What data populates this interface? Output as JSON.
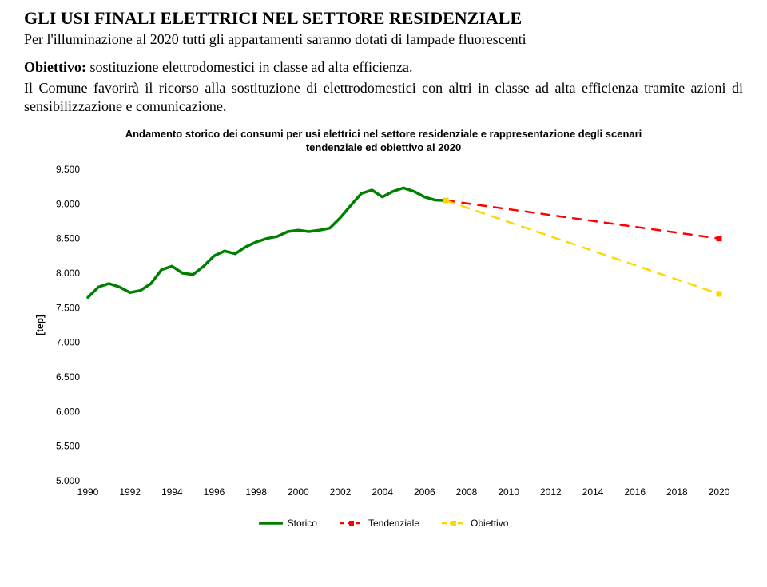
{
  "title": "GLI USI FINALI ELETTRICI NEL SETTORE RESIDENZIALE",
  "para1": "Per l'illuminazione al 2020 tutti gli appartamenti saranno dotati di lampade fluorescenti",
  "objectiveLabel": "Obiettivo:",
  "objectiveText": " sostituzione elettrodomestici  in classe ad alta efficienza.",
  "para2": "Il Comune favorirà il ricorso alla sostituzione di elettrodomestici con altri in classe ad alta efficienza tramite azioni di sensibilizzazione e comunicazione.",
  "chart": {
    "type": "line",
    "title_line1": "Andamento storico dei consumi per usi elettrici nel settore residenziale  e rappresentazione degli scenari",
    "title_line2": "tendenziale ed obiettivo al 2020",
    "title_fontsize": 13,
    "ylabel": "[tep]",
    "ylabel_fontsize": 12,
    "ylim": [
      5000,
      9500
    ],
    "ytick_step": 500,
    "yticks": [
      "9.500",
      "9.000",
      "8.500",
      "8.000",
      "7.500",
      "7.000",
      "6.500",
      "6.000",
      "5.500",
      "5.000"
    ],
    "xlim": [
      1990,
      2020
    ],
    "xtick_step": 2,
    "xticks": [
      "1990",
      "1992",
      "1994",
      "1996",
      "1998",
      "2000",
      "2002",
      "2004",
      "2006",
      "2008",
      "2010",
      "2012",
      "2014",
      "2016",
      "2018",
      "2020"
    ],
    "background_color": "#ffffff",
    "storico": {
      "color": "#008000",
      "width": 3.5,
      "points": [
        [
          1990,
          7650
        ],
        [
          1990.5,
          7800
        ],
        [
          1991,
          7850
        ],
        [
          1991.5,
          7800
        ],
        [
          1992,
          7720
        ],
        [
          1992.5,
          7750
        ],
        [
          1993,
          7850
        ],
        [
          1993.5,
          8050
        ],
        [
          1994,
          8100
        ],
        [
          1994.5,
          8000
        ],
        [
          1995,
          7980
        ],
        [
          1995.5,
          8100
        ],
        [
          1996,
          8250
        ],
        [
          1996.5,
          8320
        ],
        [
          1997,
          8280
        ],
        [
          1997.5,
          8380
        ],
        [
          1998,
          8450
        ],
        [
          1998.5,
          8500
        ],
        [
          1999,
          8530
        ],
        [
          1999.5,
          8600
        ],
        [
          2000,
          8620
        ],
        [
          2000.5,
          8600
        ],
        [
          2001,
          8620
        ],
        [
          2001.5,
          8650
        ],
        [
          2002,
          8800
        ],
        [
          2002.5,
          8980
        ],
        [
          2003,
          9150
        ],
        [
          2003.5,
          9200
        ],
        [
          2004,
          9100
        ],
        [
          2004.5,
          9180
        ],
        [
          2005,
          9230
        ],
        [
          2005.5,
          9180
        ],
        [
          2006,
          9100
        ],
        [
          2006.5,
          9055
        ],
        [
          2007,
          9050
        ]
      ]
    },
    "tendenziale": {
      "color": "#ff0000",
      "width": 2.5,
      "dash": "12,8",
      "marker_size": 7,
      "points": [
        [
          2007,
          9050
        ],
        [
          2020,
          8500
        ]
      ]
    },
    "obiettivo": {
      "color": "#ffd700",
      "width": 2.5,
      "dash": "12,8",
      "marker_size": 7,
      "points": [
        [
          2007,
          9050
        ],
        [
          2020,
          7700
        ]
      ]
    },
    "legend": {
      "items": [
        {
          "label": "Storico",
          "kind": "solid",
          "color": "#008000"
        },
        {
          "label": "Tendenziale",
          "kind": "dash-marker",
          "color": "#ff0000"
        },
        {
          "label": "Obiettivo",
          "kind": "dash-marker",
          "color": "#ffd700"
        }
      ]
    }
  }
}
